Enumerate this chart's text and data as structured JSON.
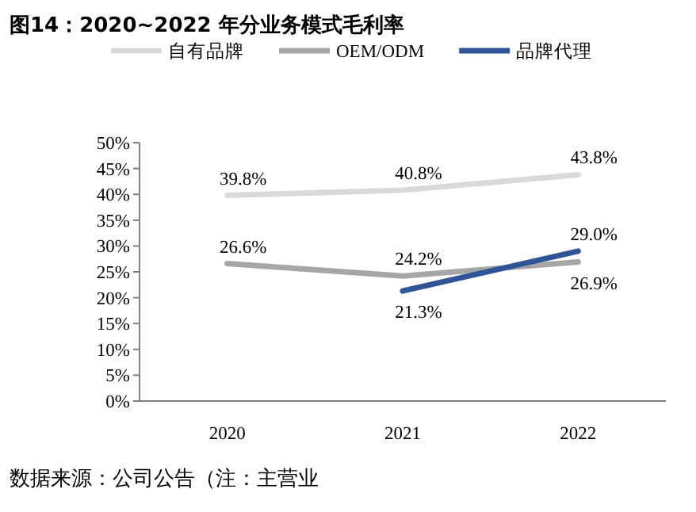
{
  "chart_data": {
    "type": "line",
    "title": "图14：2020~2022 年分业务模式毛利率",
    "categories": [
      "2020",
      "2021",
      "2022"
    ],
    "series": [
      {
        "name": "自有品牌",
        "color": "#d9d9d9",
        "values": [
          39.8,
          40.8,
          43.8
        ],
        "value_labels": [
          "39.8%",
          "40.8%",
          "43.8%"
        ]
      },
      {
        "name": "OEM/ODM",
        "color": "#a6a6a6",
        "values": [
          26.6,
          24.2,
          26.9
        ],
        "value_labels": [
          "26.6%",
          "24.2%",
          "26.9%"
        ]
      },
      {
        "name": "品牌代理",
        "color": "#2f5597",
        "values": [
          null,
          21.3,
          29.0
        ],
        "value_labels": [
          null,
          "21.3%",
          "29.0%"
        ]
      }
    ],
    "ylim": [
      0,
      50
    ],
    "yticks": [
      {
        "value": 0,
        "label": "0%"
      },
      {
        "value": 5,
        "label": "5%"
      },
      {
        "value": 10,
        "label": "10%"
      },
      {
        "value": 15,
        "label": "15%"
      },
      {
        "value": 20,
        "label": "20%"
      },
      {
        "value": 25,
        "label": "25%"
      },
      {
        "value": 30,
        "label": "30%"
      },
      {
        "value": 35,
        "label": "35%"
      },
      {
        "value": 40,
        "label": "40%"
      },
      {
        "value": 45,
        "label": "45%"
      },
      {
        "value": 50,
        "label": "50%"
      }
    ],
    "legend": "top",
    "grid": false,
    "marker": "none",
    "annotations": [
      "数据来源：公司公告（注：主营业"
    ]
  }
}
